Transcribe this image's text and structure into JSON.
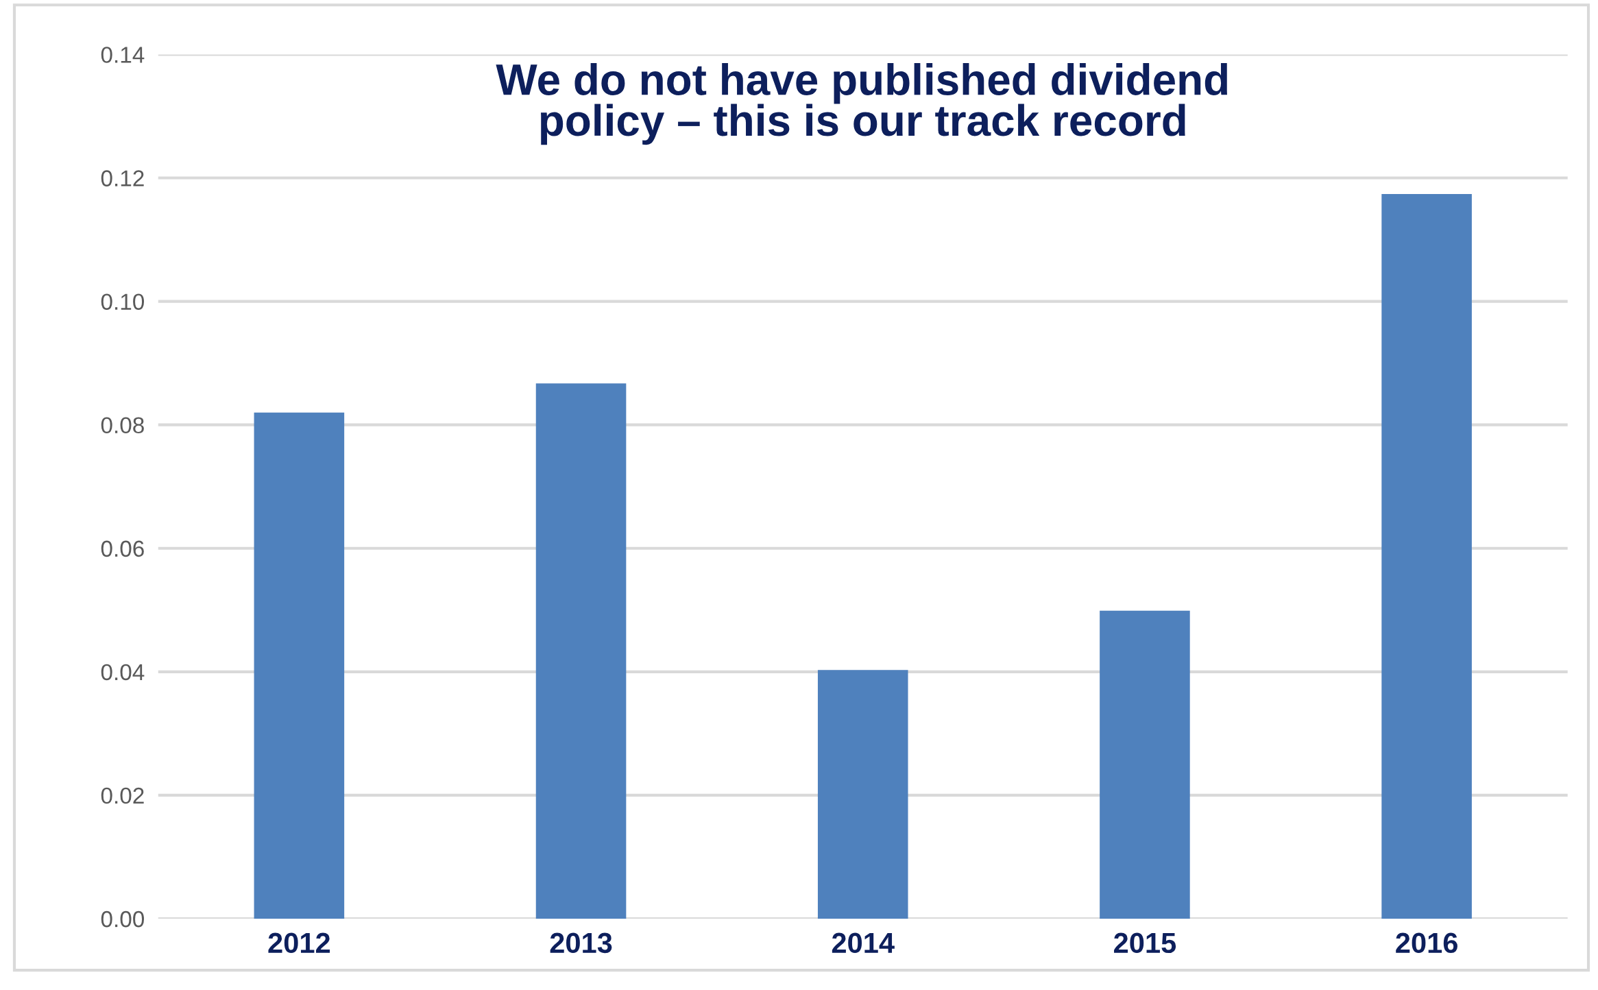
{
  "chart_data": {
    "type": "bar",
    "title": "We do not have published dividend\npolicy – this is our track record",
    "categories": [
      "2012",
      "2013",
      "2014",
      "2015",
      "2016"
    ],
    "values": [
      0.082,
      0.0867,
      0.0403,
      0.0499,
      0.1174
    ],
    "color": "#4f81bd",
    "ylim": [
      0,
      0.14
    ],
    "yticks": [
      {
        "value": 0,
        "label": "0.00"
      },
      {
        "value": 0.02,
        "label": "0.02"
      },
      {
        "value": 0.04,
        "label": "0.04"
      },
      {
        "value": 0.06,
        "label": "0.06"
      },
      {
        "value": 0.08,
        "label": "0.08"
      },
      {
        "value": 0.1,
        "label": "0.10"
      },
      {
        "value": 0.12,
        "label": "0.12"
      },
      {
        "value": 0.14,
        "label": "0.14"
      }
    ],
    "grid": "y",
    "legend": false
  }
}
